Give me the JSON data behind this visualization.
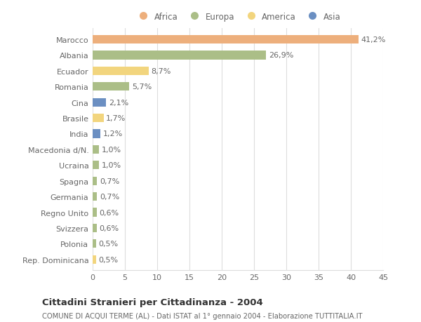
{
  "countries": [
    "Marocco",
    "Albania",
    "Ecuador",
    "Romania",
    "Cina",
    "Brasile",
    "India",
    "Macedonia d/N.",
    "Ucraina",
    "Spagna",
    "Germania",
    "Regno Unito",
    "Svizzera",
    "Polonia",
    "Rep. Dominicana"
  ],
  "values": [
    41.2,
    26.9,
    8.7,
    5.7,
    2.1,
    1.7,
    1.2,
    1.0,
    1.0,
    0.7,
    0.7,
    0.6,
    0.6,
    0.5,
    0.5
  ],
  "labels": [
    "41,2%",
    "26,9%",
    "8,7%",
    "5,7%",
    "2,1%",
    "1,7%",
    "1,2%",
    "1,0%",
    "1,0%",
    "0,7%",
    "0,7%",
    "0,6%",
    "0,6%",
    "0,5%",
    "0,5%"
  ],
  "colors": [
    "#EDAF7C",
    "#ABBE87",
    "#F2D57E",
    "#ABBE87",
    "#6B8FC2",
    "#F2D57E",
    "#6B8FC2",
    "#ABBE87",
    "#ABBE87",
    "#ABBE87",
    "#ABBE87",
    "#ABBE87",
    "#ABBE87",
    "#ABBE87",
    "#F2D57E"
  ],
  "legend_labels": [
    "Africa",
    "Europa",
    "America",
    "Asia"
  ],
  "legend_colors": [
    "#EDAF7C",
    "#ABBE87",
    "#F2D57E",
    "#6B8FC2"
  ],
  "title": "Cittadini Stranieri per Cittadinanza - 2004",
  "subtitle": "COMUNE DI ACQUI TERME (AL) - Dati ISTAT al 1° gennaio 2004 - Elaborazione TUTTITALIA.IT",
  "xlim": [
    0,
    45
  ],
  "xticks": [
    0,
    5,
    10,
    15,
    20,
    25,
    30,
    35,
    40,
    45
  ],
  "background_color": "#ffffff",
  "grid_color": "#dddddd",
  "bar_height": 0.55,
  "label_fontsize": 8,
  "tick_fontsize": 8,
  "text_color": "#666666"
}
